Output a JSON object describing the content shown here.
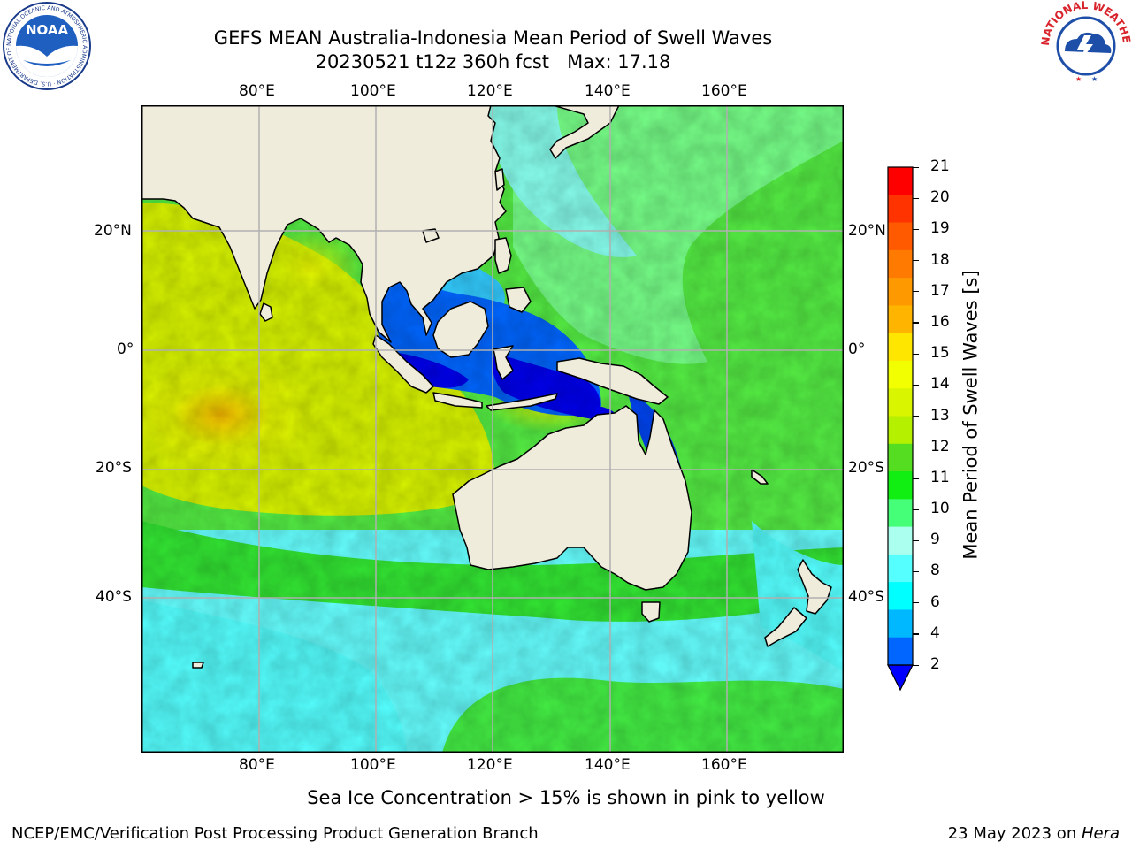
{
  "header": {
    "title_line1": "GEFS MEAN Australia-Indonesia Mean Period of Swell Waves",
    "title_line2": "20230521 t12z 360h fcst   Max: 17.18"
  },
  "logos": {
    "left": {
      "text": "NOAA",
      "ring_text": "NATIONAL OCEANIC AND ATMOSPHERIC ADMINISTRATION · U.S. DEPARTMENT OF COMMERCE"
    },
    "right": {
      "ring_text": "NATIONAL WEATHER SERVICE"
    }
  },
  "map": {
    "lon_labels": [
      "80°E",
      "100°E",
      "120°E",
      "140°E",
      "160°E"
    ],
    "lat_labels": [
      "20°N",
      "0°",
      "20°S",
      "40°S"
    ],
    "land_color": "#efecdc",
    "grid_color": "#b0b0b0"
  },
  "colorbar": {
    "title": "Mean Period of Swell Waves [s]",
    "labels": [
      "21",
      "20",
      "19",
      "18",
      "17",
      "16",
      "15",
      "14",
      "13",
      "12",
      "11",
      "10",
      "9",
      "8",
      "6",
      "4",
      "2"
    ],
    "colors": [
      "#ff0000",
      "#ff3300",
      "#ff5a00",
      "#ff7a00",
      "#ff9900",
      "#ffb400",
      "#ffe600",
      "#f2ff00",
      "#d9f500",
      "#b4f000",
      "#55dd22",
      "#11ee11",
      "#44ff77",
      "#aaffee",
      "#55ffff",
      "#00ffff",
      "#00b8ff",
      "#0066ff"
    ],
    "extend_color": "#0000ff"
  },
  "footer": {
    "note": "Sea Ice Concentration > 15% is shown in pink to yellow",
    "left": "NCEP/EMC/Verification Post Processing Product Generation Branch",
    "right_prefix": "23 May 2023 on ",
    "right_host": "Hera"
  }
}
